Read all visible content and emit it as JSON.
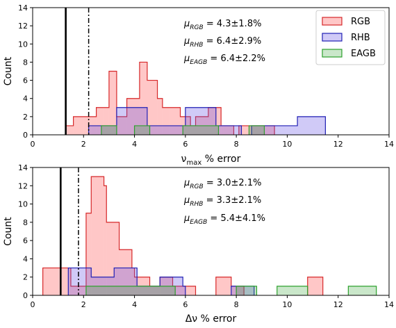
{
  "chart_data": [
    {
      "type": "histogram",
      "id": "numax",
      "xlabel": "ν_max % error",
      "xlabel_main": "ν",
      "xlabel_sub": "max",
      "xlabel_rest": " % error",
      "ylabel": "Count",
      "xlim": [
        0,
        14
      ],
      "ylim": [
        0,
        14
      ],
      "xticks": [
        0,
        2,
        4,
        6,
        8,
        10,
        12,
        14
      ],
      "yticks": [
        0,
        2,
        4,
        6,
        8,
        10,
        12,
        14
      ],
      "vlines": [
        {
          "x": 1.3,
          "style": "solid"
        },
        {
          "x": 2.2,
          "style": "dashdot"
        }
      ],
      "series": [
        {
          "name": "RGB",
          "edge": "#d62728",
          "fill": "rgba(255,0,0,0.22)",
          "bins": [
            [
              1.3,
              1.6,
              1
            ],
            [
              1.6,
              2.0,
              2
            ],
            [
              2.0,
              2.3,
              2
            ],
            [
              2.3,
              2.5,
              2
            ],
            [
              2.5,
              2.8,
              3
            ],
            [
              2.8,
              3.0,
              3
            ],
            [
              3.0,
              3.3,
              7
            ],
            [
              3.3,
              3.7,
              2
            ],
            [
              3.7,
              4.2,
              4
            ],
            [
              4.2,
              4.5,
              8
            ],
            [
              4.5,
              4.9,
              6
            ],
            [
              4.9,
              5.1,
              4
            ],
            [
              5.1,
              5.4,
              3
            ],
            [
              5.4,
              5.8,
              3
            ],
            [
              5.8,
              6.2,
              2
            ],
            [
              6.2,
              6.4,
              1
            ],
            [
              6.4,
              6.9,
              2
            ],
            [
              6.9,
              7.1,
              3
            ],
            [
              7.1,
              7.4,
              3
            ],
            [
              7.4,
              7.5,
              1
            ],
            [
              7.5,
              7.9,
              1
            ],
            [
              8.1,
              8.5,
              1
            ],
            [
              8.5,
              9.0,
              1
            ],
            [
              9.0,
              9.5,
              1
            ]
          ]
        },
        {
          "name": "RHB",
          "edge": "#1f1fb4",
          "fill": "rgba(100,80,230,0.30)",
          "bins": [
            [
              2.2,
              2.7,
              1
            ],
            [
              2.7,
              3.3,
              1
            ],
            [
              3.3,
              4.5,
              3
            ],
            [
              4.5,
              6.0,
              1
            ],
            [
              6.0,
              7.2,
              3
            ],
            [
              7.2,
              7.9,
              1
            ],
            [
              7.9,
              8.2,
              1
            ],
            [
              8.6,
              10.4,
              1
            ],
            [
              10.4,
              11.5,
              2
            ]
          ]
        },
        {
          "name": "EAGB",
          "edge": "#2ca02c",
          "fill": "rgba(44,160,44,0.25)",
          "bins": [
            [
              2.7,
              3.3,
              1
            ],
            [
              4.0,
              4.6,
              1
            ],
            [
              5.9,
              7.3,
              1
            ],
            [
              8.5,
              9.1,
              1
            ]
          ]
        }
      ],
      "annotations": [
        {
          "sym": "μ",
          "sub": "RGB",
          "text": " = 4.3±1.8%"
        },
        {
          "sym": "μ",
          "sub": "RHB",
          "text": " = 6.4±2.9%"
        },
        {
          "sym": "μ",
          "sub": "EAGB",
          "text": " = 6.4±2.2%"
        }
      ],
      "legend": {
        "placement": "top-right",
        "entries": [
          "RGB",
          "RHB",
          "EAGB"
        ]
      }
    },
    {
      "type": "histogram",
      "id": "dnu",
      "xlabel": "Δν % error",
      "xlabel_main": "Δν",
      "xlabel_sub": "",
      "xlabel_rest": " % error",
      "ylabel": "Count",
      "xlim": [
        0,
        14
      ],
      "ylim": [
        0,
        14
      ],
      "xticks": [
        0,
        2,
        4,
        6,
        8,
        10,
        12,
        14
      ],
      "yticks": [
        0,
        2,
        4,
        6,
        8,
        10,
        12,
        14
      ],
      "vlines": [
        {
          "x": 1.1,
          "style": "solid"
        },
        {
          "x": 1.8,
          "style": "dashdot"
        }
      ],
      "series": [
        {
          "name": "RGB",
          "edge": "#d62728",
          "fill": "rgba(255,0,0,0.22)",
          "bins": [
            [
              0.4,
              1.1,
              3
            ],
            [
              1.1,
              1.5,
              3
            ],
            [
              1.5,
              2.1,
              1
            ],
            [
              2.1,
              2.3,
              9
            ],
            [
              2.3,
              2.8,
              13
            ],
            [
              2.8,
              2.9,
              12
            ],
            [
              2.9,
              3.4,
              8
            ],
            [
              3.4,
              3.9,
              5
            ],
            [
              3.9,
              4.0,
              3
            ],
            [
              4.0,
              4.6,
              2
            ],
            [
              4.6,
              5.0,
              1
            ],
            [
              5.0,
              5.5,
              2
            ],
            [
              5.5,
              6.0,
              1
            ],
            [
              6.0,
              6.4,
              1
            ],
            [
              7.2,
              7.8,
              2
            ],
            [
              7.8,
              8.3,
              1
            ],
            [
              10.8,
              11.4,
              2
            ]
          ]
        },
        {
          "name": "RHB",
          "edge": "#1f1fb4",
          "fill": "rgba(100,80,230,0.30)",
          "bins": [
            [
              1.4,
              2.3,
              3
            ],
            [
              2.3,
              2.9,
              2
            ],
            [
              2.9,
              3.2,
              2
            ],
            [
              3.2,
              4.1,
              3
            ],
            [
              4.1,
              5.0,
              1
            ],
            [
              5.0,
              5.9,
              2
            ],
            [
              5.9,
              6.0,
              1
            ],
            [
              7.8,
              8.7,
              1
            ]
          ]
        },
        {
          "name": "EAGB",
          "edge": "#2ca02c",
          "fill": "rgba(44,160,44,0.25)",
          "bins": [
            [
              2.1,
              4.1,
              1
            ],
            [
              4.1,
              5.6,
              1
            ],
            [
              8.0,
              8.8,
              1
            ],
            [
              9.6,
              10.8,
              1
            ],
            [
              12.4,
              13.5,
              1
            ]
          ]
        }
      ],
      "annotations": [
        {
          "sym": "μ",
          "sub": "RGB",
          "text": " = 3.0±2.1%"
        },
        {
          "sym": "μ",
          "sub": "RHB",
          "text": " = 3.3±2.1%"
        },
        {
          "sym": "μ",
          "sub": "EAGB",
          "text": " = 5.4±4.1%"
        }
      ],
      "legend": null
    }
  ]
}
